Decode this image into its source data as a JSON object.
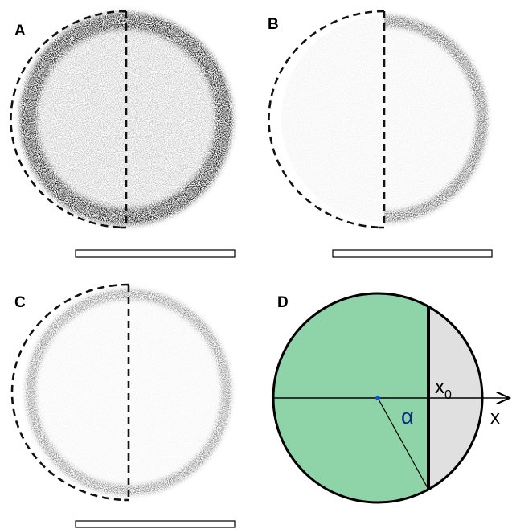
{
  "panels": [
    {
      "label": "A"
    },
    {
      "label": "B"
    },
    {
      "label": "C"
    },
    {
      "label": "D"
    }
  ],
  "diagram": {
    "chord_label": {
      "base": "x",
      "sub": "0"
    },
    "axis_label": "x",
    "angle_label": "α"
  }
}
